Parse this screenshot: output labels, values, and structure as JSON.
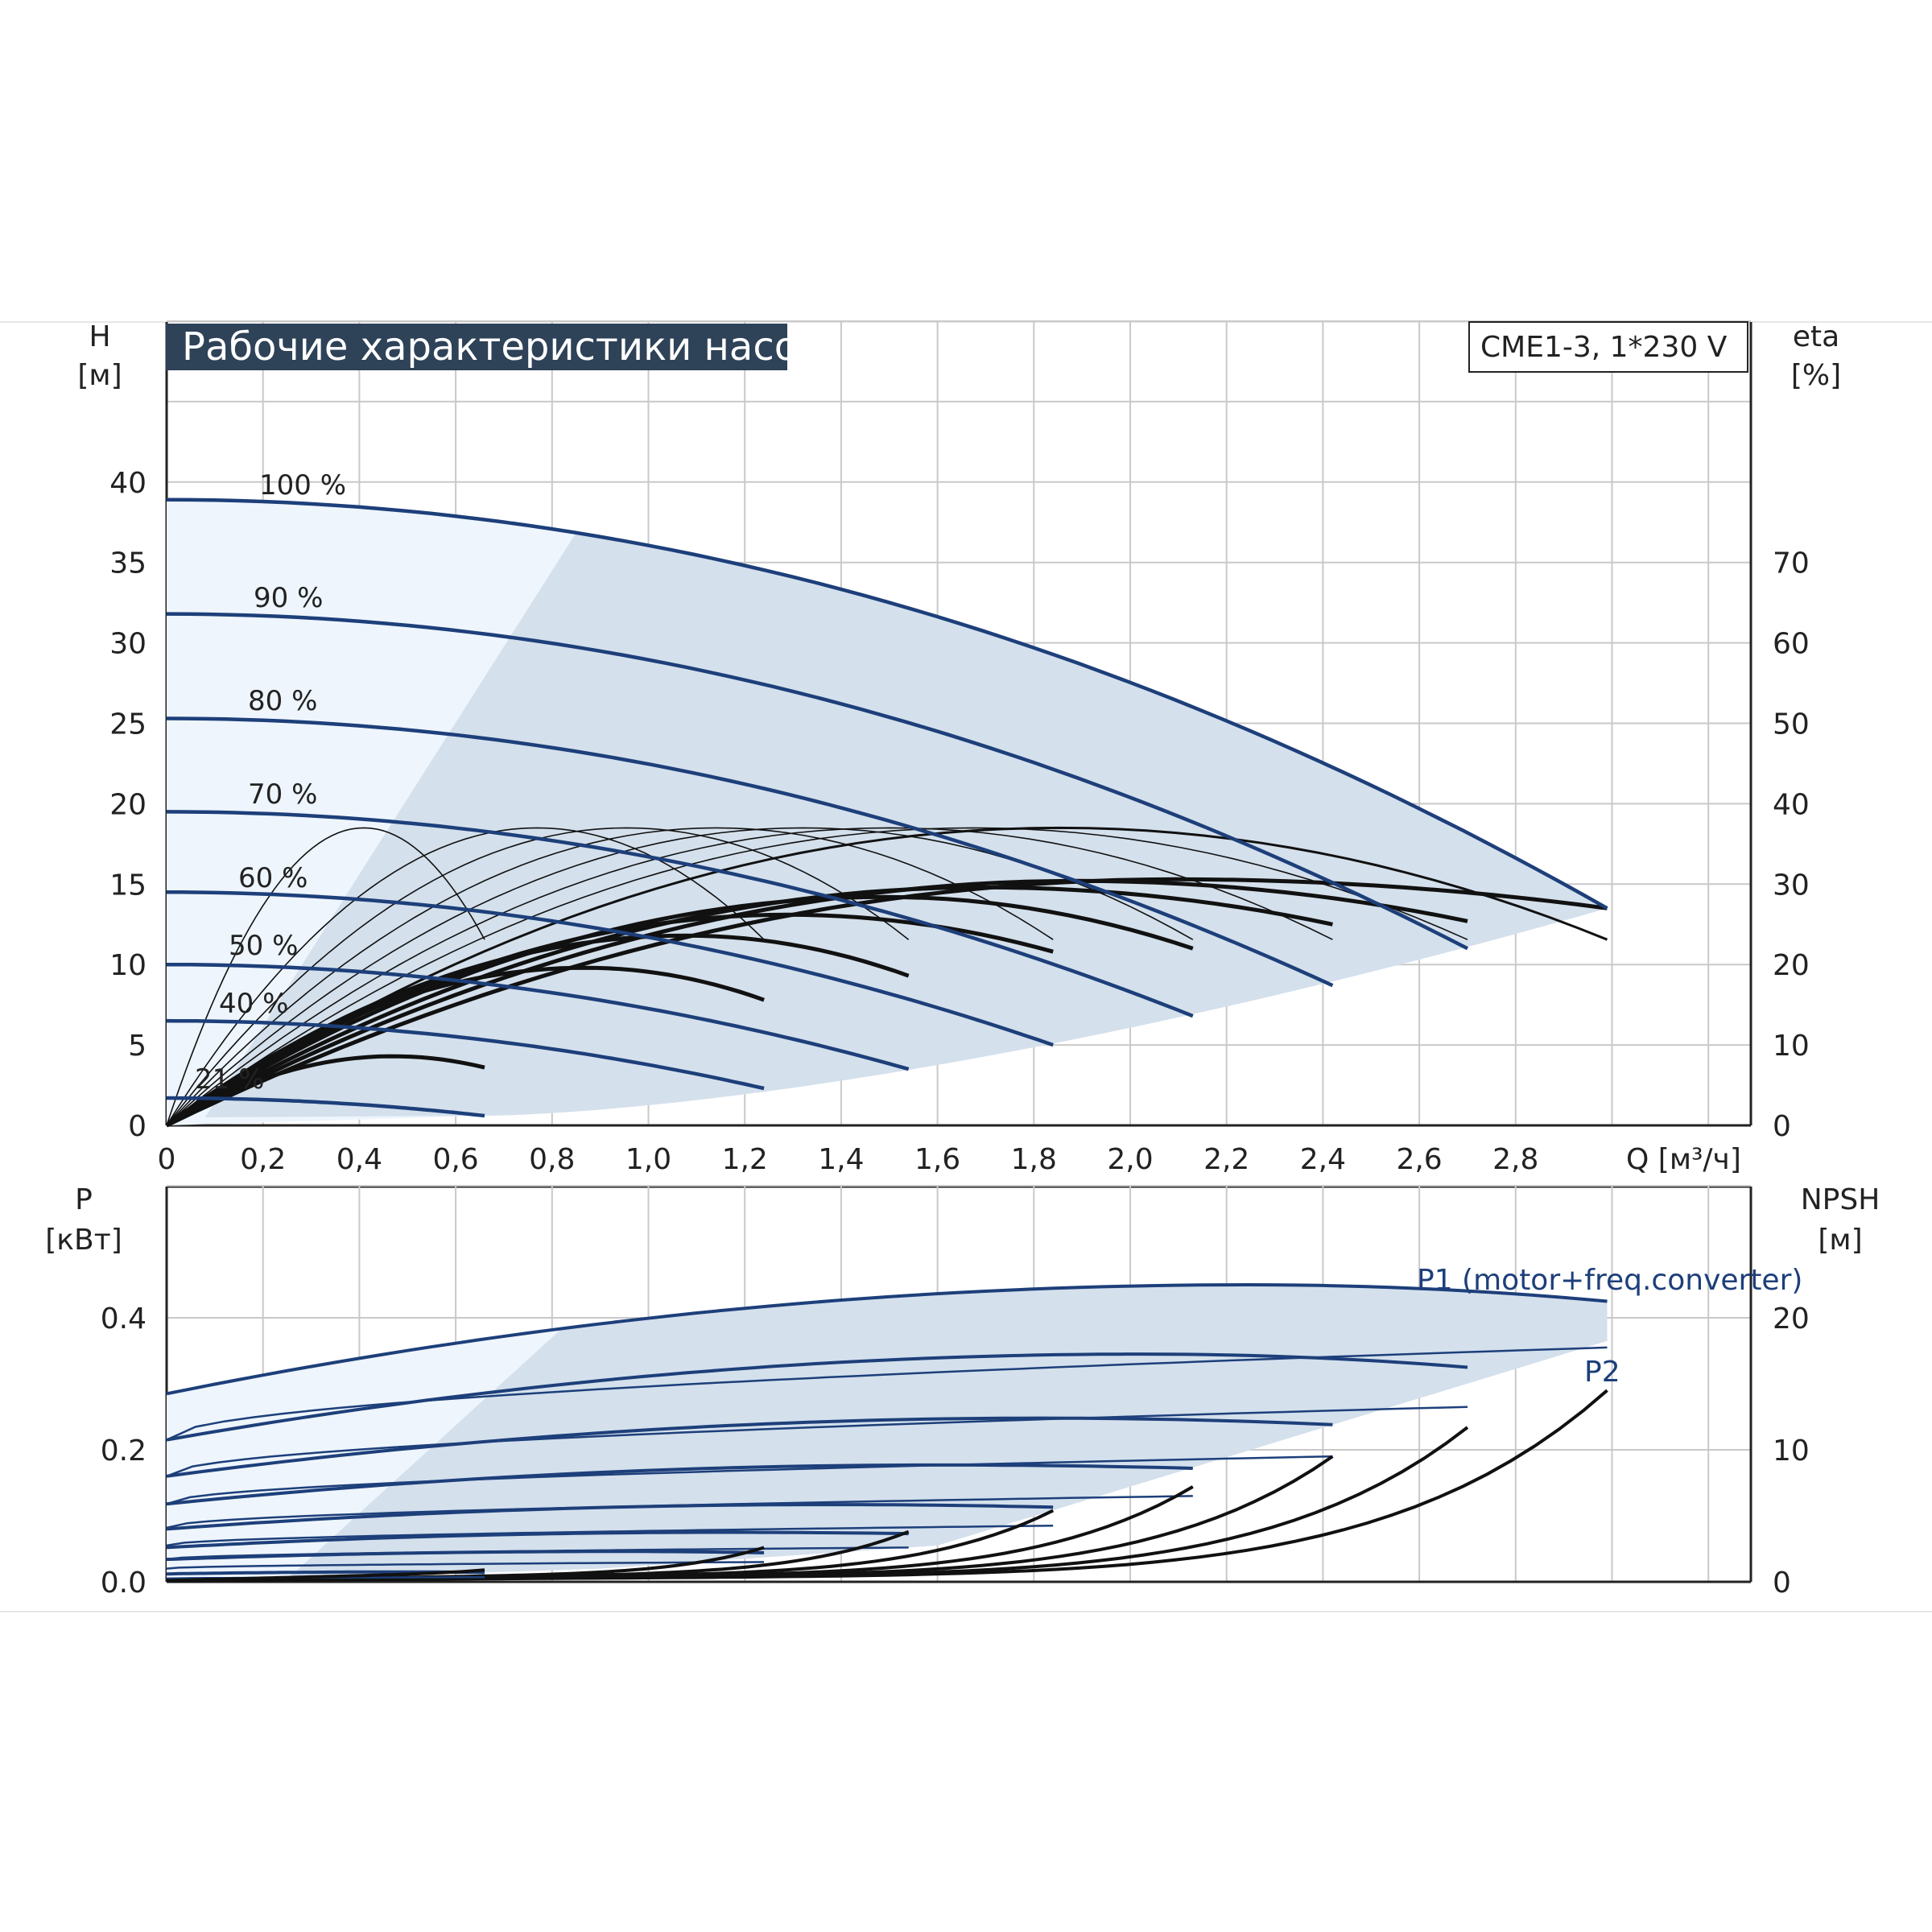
{
  "header": {
    "title": "Рабочие характеристики насоса",
    "model": "CME1-3, 1*230 V"
  },
  "colors": {
    "curve_blue": "#1d3f7a",
    "envelope": "#d4e0ec",
    "envelope_light": "#eef5fc",
    "grid": "#c9c9c9",
    "title_bg": "#2e4258",
    "black_curve": "#111111"
  },
  "chart_data": [
    {
      "id": "head",
      "type": "line",
      "title": "Рабочие характеристики насоса",
      "subtitle": "CME1-3, 1*230 V",
      "y_label": "H",
      "y_unit": "[м]",
      "y2_label": "eta",
      "y2_unit": "[%]",
      "x_label": "Q [м³/ч]",
      "xlim": [
        0,
        3.2
      ],
      "ylim": [
        0,
        40
      ],
      "y2lim": [
        0,
        80
      ],
      "x_ticks": [
        "0",
        "0,2",
        "0,4",
        "0,6",
        "0,8",
        "1,0",
        "1,2",
        "1,4",
        "1,6",
        "1,8",
        "2,0",
        "2,2",
        "2,4",
        "2,6",
        "2,8"
      ],
      "y_ticks": [
        "0",
        "5",
        "10",
        "15",
        "20",
        "25",
        "30",
        "35",
        "40"
      ],
      "y2_ticks": [
        "0",
        "10",
        "20",
        "30",
        "40",
        "50",
        "60",
        "70"
      ],
      "grid": true,
      "speed_labels": [
        "100 %",
        "90 %",
        "80 %",
        "70 %",
        "60 %",
        "50 %",
        "40 %",
        "21 %"
      ],
      "series": [
        {
          "name": "100 %",
          "speed": 1.0,
          "H0": 38.9,
          "Qmax": 2.99,
          "Hend": 13.5
        },
        {
          "name": "90 %",
          "speed": 0.9,
          "H0": 31.8,
          "Qmax": 2.7,
          "Hend": 11.0
        },
        {
          "name": "80 %",
          "speed": 0.8,
          "H0": 25.3,
          "Qmax": 2.42,
          "Hend": 8.7
        },
        {
          "name": "70 %",
          "speed": 0.7,
          "H0": 19.5,
          "Qmax": 2.13,
          "Hend": 6.8
        },
        {
          "name": "60 %",
          "speed": 0.6,
          "H0": 14.5,
          "Qmax": 1.84,
          "Hend": 5.0
        },
        {
          "name": "50 %",
          "speed": 0.5,
          "H0": 10.0,
          "Qmax": 1.54,
          "Hend": 3.5
        },
        {
          "name": "40 %",
          "speed": 0.4,
          "H0": 6.5,
          "Qmax": 1.24,
          "Hend": 2.3
        },
        {
          "name": "21 %",
          "speed": 0.21,
          "H0": 1.7,
          "Qmax": 0.66,
          "Hend": 0.6
        }
      ],
      "efficiency_max_pct": 37
    },
    {
      "id": "power",
      "type": "line",
      "y_label": "P",
      "y_unit": "[кВт]",
      "y2_label": "NPSH",
      "y2_unit": "[м]",
      "xlim": [
        0,
        3.2
      ],
      "ylim": [
        0,
        0.5
      ],
      "y2lim": [
        0,
        25
      ],
      "y_ticks": [
        "0.0",
        "0.2",
        "0.4"
      ],
      "y2_ticks": [
        "0",
        "10",
        "20"
      ],
      "grid": true,
      "labels": {
        "p1": "P1 (motor+freq.converter)",
        "p2": "P2"
      },
      "series": [
        {
          "name": "100 %",
          "P1_start": 0.285,
          "P1_max": 0.45,
          "P1_end": 0.425,
          "P2_start": 0.215,
          "P2_end": 0.355,
          "NPSH_end": 14.5
        },
        {
          "name": "90 %",
          "P1_start": 0.215,
          "P1_max": 0.345,
          "P1_end": 0.325,
          "P2_start": 0.16,
          "P2_end": 0.265,
          "NPSH_end": 11.7
        },
        {
          "name": "80 %",
          "P1_start": 0.16,
          "P1_max": 0.248,
          "P1_end": 0.238,
          "P2_start": 0.118,
          "P2_end": 0.19,
          "NPSH_end": 9.5
        },
        {
          "name": "70 %",
          "P1_start": 0.118,
          "P1_max": 0.177,
          "P1_end": 0.172,
          "P2_start": 0.082,
          "P2_end": 0.13,
          "NPSH_end": 7.2
        },
        {
          "name": "60 %",
          "P1_start": 0.08,
          "P1_max": 0.117,
          "P1_end": 0.113,
          "P2_start": 0.055,
          "P2_end": 0.085,
          "NPSH_end": 5.4
        },
        {
          "name": "50 %",
          "P1_start": 0.052,
          "P1_max": 0.075,
          "P1_end": 0.073,
          "P2_start": 0.034,
          "P2_end": 0.052,
          "NPSH_end": 3.8
        },
        {
          "name": "40 %",
          "P1_start": 0.034,
          "P1_max": 0.046,
          "P1_end": 0.044,
          "P2_start": 0.02,
          "P2_end": 0.03,
          "NPSH_end": 2.6
        },
        {
          "name": "21 %",
          "P1_start": 0.012,
          "P1_max": 0.015,
          "P1_end": 0.014,
          "P2_start": 0.005,
          "P2_end": 0.007,
          "NPSH_end": 0.9
        }
      ]
    }
  ]
}
